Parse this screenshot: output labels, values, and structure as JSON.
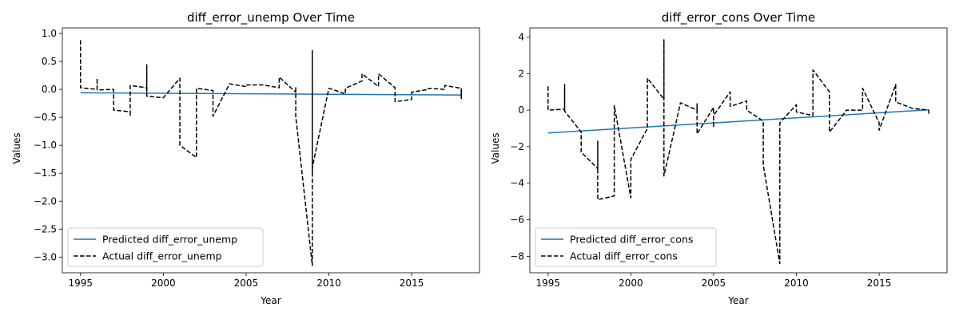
{
  "chart_data": [
    {
      "type": "line",
      "title": "diff_error_unemp Over Time",
      "xlabel": "Year",
      "ylabel": "Values",
      "xlim": [
        1993.9,
        2019.1
      ],
      "ylim": [
        -3.28,
        1.1
      ],
      "xticks": [
        1995,
        2000,
        2005,
        2010,
        2015
      ],
      "xtick_labels": [
        "1995",
        "2000",
        "2005",
        "2010",
        "2015"
      ],
      "yticks": [
        1.0,
        0.5,
        0.0,
        -0.5,
        -1.0,
        -1.5,
        -2.0,
        -2.5,
        -3.0
      ],
      "ytick_labels": [
        "1.0",
        "0.5",
        "0.0",
        "−0.5",
        "−1.0",
        "−1.5",
        "−2.0",
        "−2.5",
        "−3.0"
      ],
      "legend_position": "lower-left",
      "series": [
        {
          "name": "Predicted diff_error_unemp",
          "color": "#1f77b4",
          "style": "solid",
          "x": [
            1995,
            2018
          ],
          "y": [
            -0.06,
            -0.1
          ]
        },
        {
          "name": "Actual diff_error_unemp",
          "color": "#000000",
          "style": "dashed",
          "x": [
            1995,
            1995,
            1996,
            1996,
            1996,
            1997,
            1997,
            1998,
            1998,
            1998,
            1999,
            1999,
            2000,
            2001,
            2001,
            2002,
            2002,
            2003,
            2003,
            2004,
            2005,
            2005,
            2006,
            2007,
            2007,
            2008,
            2008,
            2008,
            2009,
            2009,
            2009,
            2010,
            2011,
            2011,
            2012,
            2012,
            2013,
            2013,
            2014,
            2014,
            2015,
            2015,
            2016,
            2016,
            2017,
            2017,
            2018,
            2018
          ],
          "y": [
            0.88,
            0.03,
            0.0,
            0.2,
            -0.01,
            0.0,
            -0.37,
            -0.4,
            -0.48,
            0.07,
            0.03,
            -0.12,
            -0.15,
            0.2,
            -1.0,
            -1.22,
            0.02,
            -0.02,
            -0.48,
            0.1,
            0.05,
            0.08,
            0.08,
            0.03,
            0.22,
            -0.05,
            0.03,
            -0.48,
            -3.15,
            -1.55,
            -1.4,
            0.02,
            -0.08,
            0.02,
            0.15,
            0.28,
            0.05,
            0.28,
            0.03,
            -0.22,
            -0.18,
            -0.05,
            0.0,
            0.02,
            0.0,
            0.07,
            0.02,
            -0.17
          ]
        }
      ],
      "vertical_segments": {
        "color": "#000000",
        "x": [
          1999,
          2009,
          2018
        ],
        "y_from": [
          0.45,
          -1.5,
          -0.15
        ],
        "y_to": [
          -0.05,
          0.7,
          0.02
        ]
      }
    },
    {
      "type": "line",
      "title": "diff_error_cons Over Time",
      "xlabel": "Year",
      "ylabel": "Values",
      "xlim": [
        1993.9,
        2019.1
      ],
      "ylim": [
        -8.9,
        4.5
      ],
      "xticks": [
        1995,
        2000,
        2005,
        2010,
        2015
      ],
      "xtick_labels": [
        "1995",
        "2000",
        "2005",
        "2010",
        "2015"
      ],
      "yticks": [
        4,
        2,
        0,
        -2,
        -4,
        -6,
        -8
      ],
      "ytick_labels": [
        "4",
        "2",
        "0",
        "−2",
        "−4",
        "−6",
        "−8"
      ],
      "legend_position": "lower-left",
      "series": [
        {
          "name": "Predicted diff_error_cons",
          "color": "#1f77b4",
          "style": "solid",
          "x": [
            1995,
            2018
          ],
          "y": [
            -1.25,
            0.02
          ]
        },
        {
          "name": "Actual diff_error_cons",
          "color": "#000000",
          "style": "dashed",
          "x": [
            1995,
            1995,
            1996,
            1996,
            1996,
            1997,
            1997,
            1998,
            1998,
            1998,
            1999,
            1999,
            2000,
            2000,
            2001,
            2001,
            2002,
            2002,
            2002,
            2003,
            2004,
            2004,
            2004,
            2005,
            2005,
            2005,
            2006,
            2006,
            2007,
            2007,
            2008,
            2008,
            2009,
            2009,
            2010,
            2010,
            2011,
            2011,
            2012,
            2012,
            2013,
            2013,
            2014,
            2014,
            2015,
            2015,
            2016,
            2016,
            2017,
            2018,
            2018
          ],
          "y": [
            1.3,
            0.0,
            0.05,
            1.4,
            -0.05,
            -1.2,
            -2.3,
            -3.2,
            -1.7,
            -4.9,
            -4.7,
            0.25,
            -4.8,
            -2.7,
            -1.0,
            1.75,
            0.6,
            3.85,
            -3.6,
            0.4,
            0.0,
            0.35,
            -1.3,
            0.15,
            -0.95,
            -0.3,
            1.0,
            0.2,
            0.5,
            0.0,
            -0.6,
            -3.0,
            -8.4,
            -0.7,
            0.3,
            -0.1,
            -0.3,
            2.2,
            1.0,
            -1.2,
            -0.05,
            0.0,
            0.0,
            1.2,
            -0.7,
            -1.1,
            1.4,
            0.45,
            0.1,
            0.0,
            -0.2
          ]
        }
      ]
    }
  ]
}
